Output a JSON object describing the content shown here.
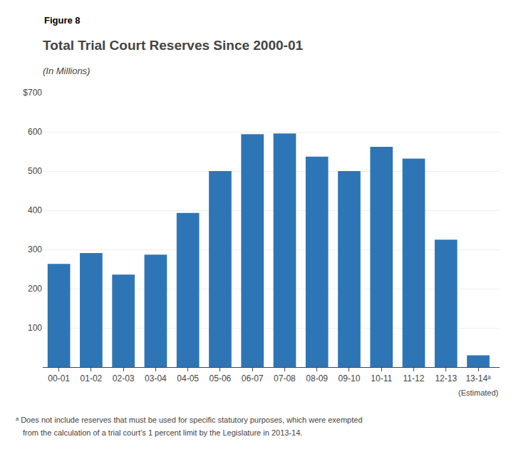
{
  "chart_data": {
    "type": "bar",
    "title": "Total Trial Court Reserves Since 2000-01",
    "subtitle": "(In Millions)",
    "categories": [
      "00-01",
      "01-02",
      "02-03",
      "03-04",
      "04-05",
      "05-06",
      "06-07",
      "07-08",
      "08-09",
      "09-10",
      "10-11",
      "11-12",
      "12-13",
      "13-14ᵃ"
    ],
    "values": [
      263,
      291,
      236,
      287,
      393,
      500,
      594,
      596,
      537,
      500,
      562,
      532,
      325,
      30
    ],
    "color": "#2E75B6",
    "ylim": [
      0,
      700
    ],
    "yticks": [
      100,
      200,
      300,
      400,
      500,
      600,
      {
        "value": 700,
        "label": "$700"
      }
    ],
    "grid": true,
    "annotations": [
      "Figure 8",
      "(Estimated)",
      "ᵃ Does not include reserves that must be used for specific statutory purposes, which were exempted",
      "from the calculation of a trial court’s 1 percent limit by the Legislature in 2013-14."
    ]
  }
}
